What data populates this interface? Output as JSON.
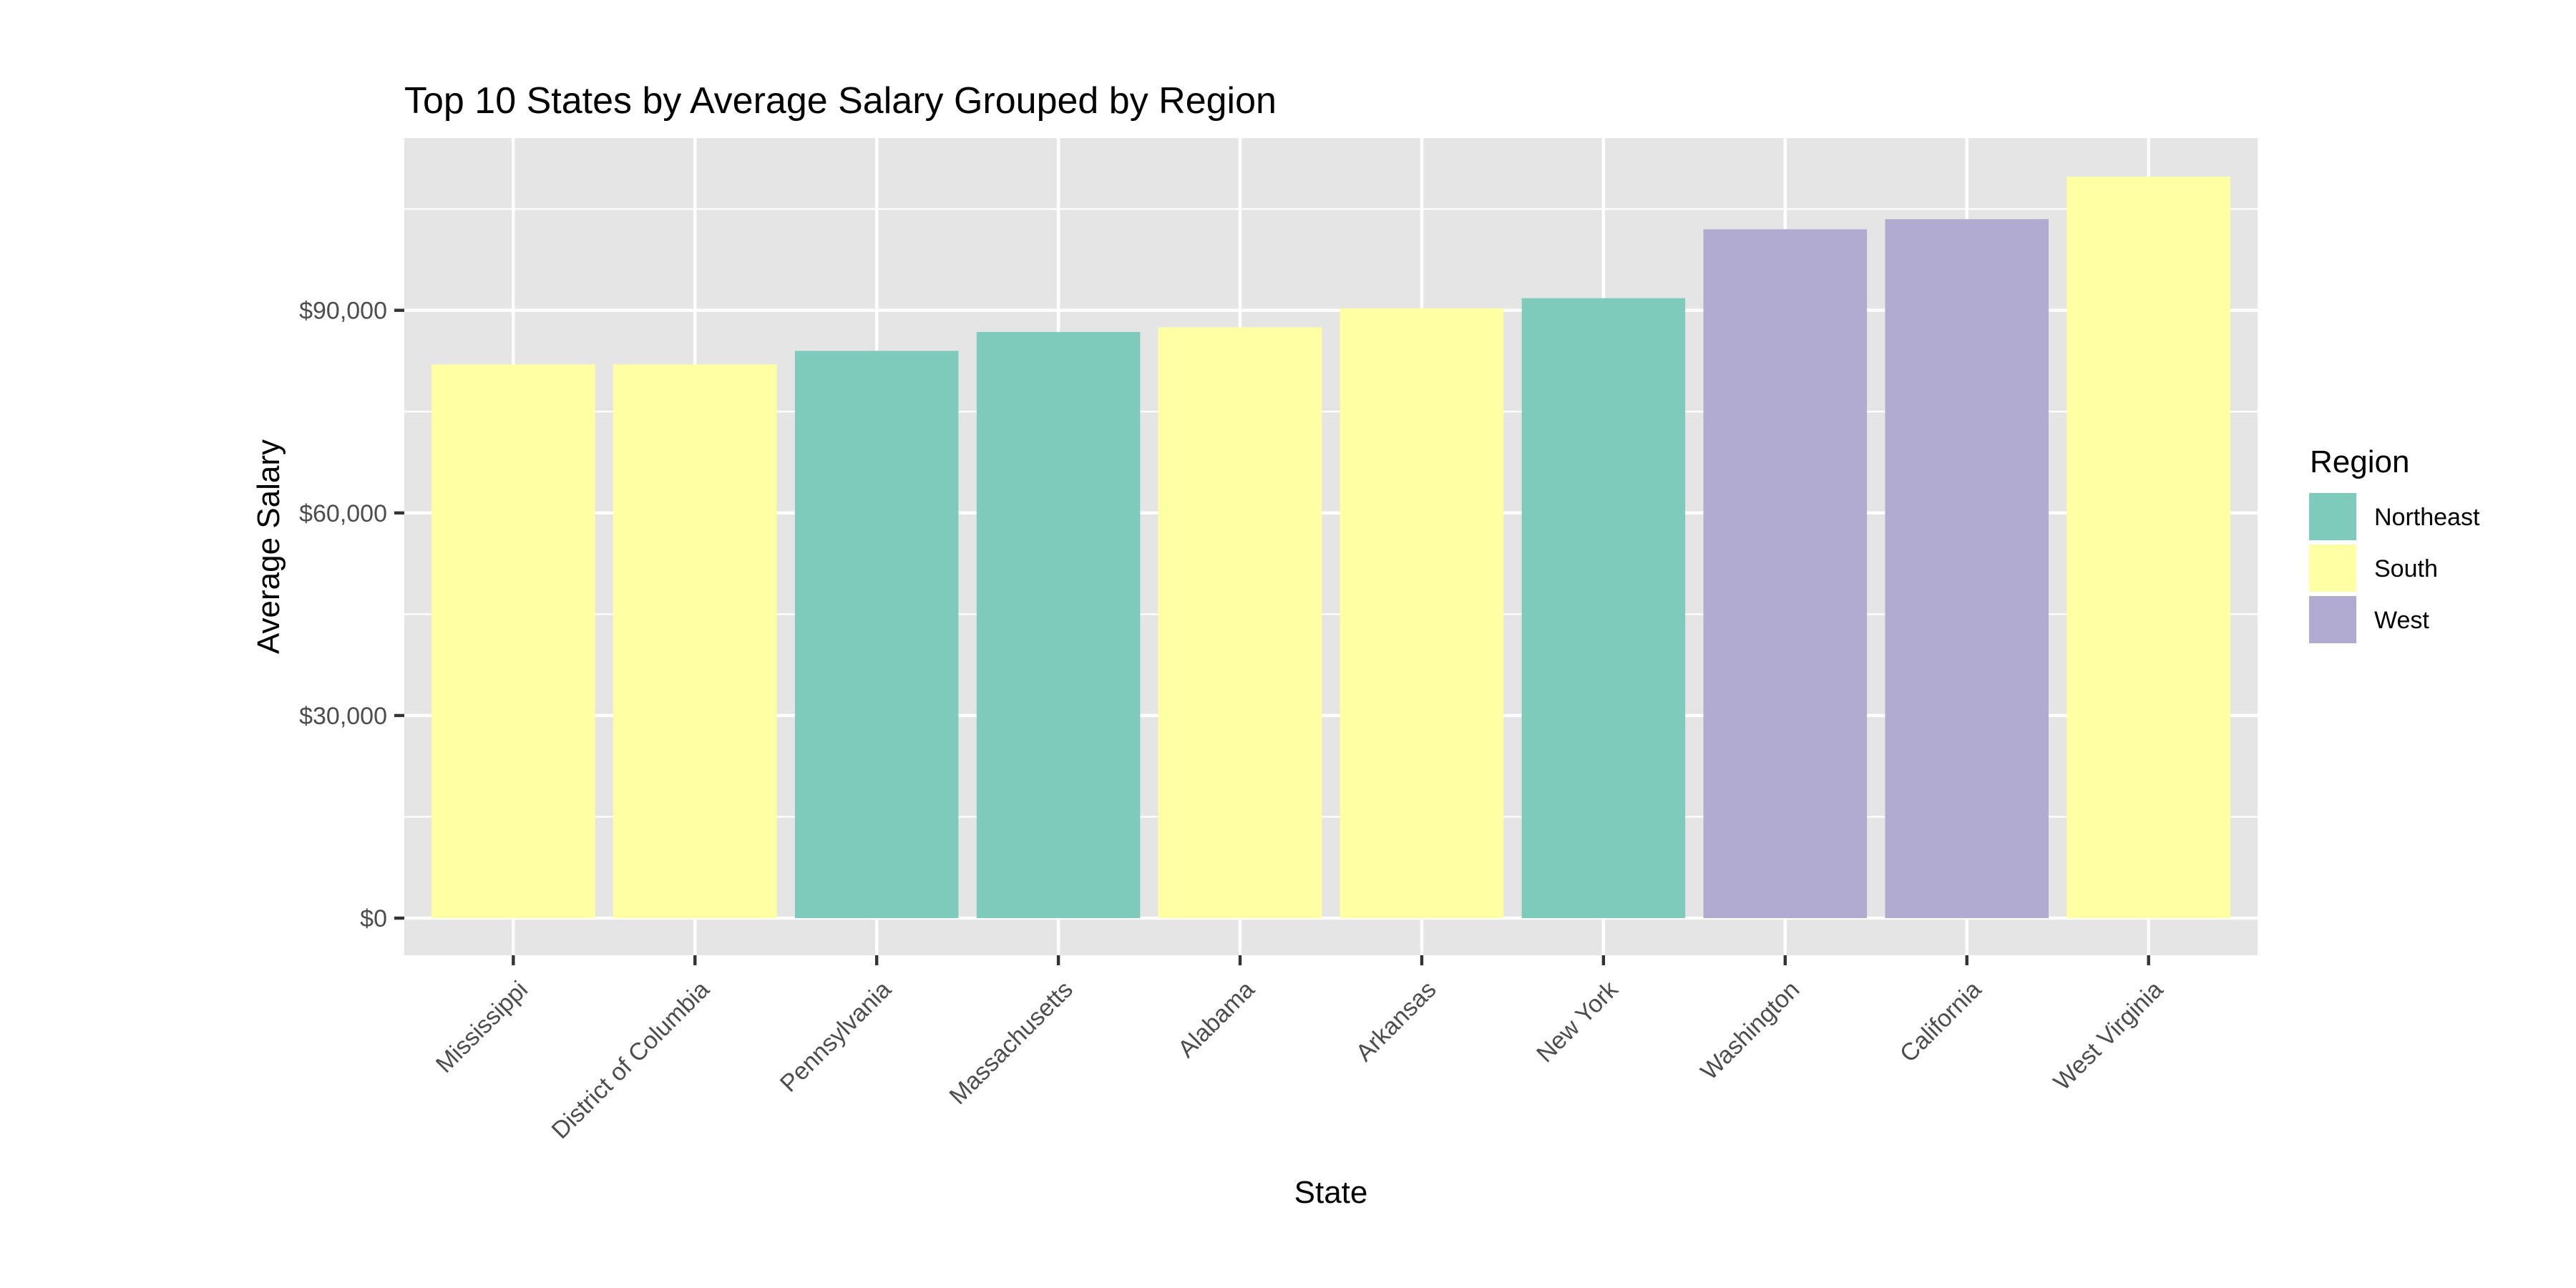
{
  "chart_data": {
    "type": "bar",
    "title": "Top 10 States by Average Salary Grouped by Region",
    "xlabel": "State",
    "ylabel": "Average Salary",
    "categories": [
      "Mississippi",
      "District of Columbia",
      "Pennsylvania",
      "Massachusetts",
      "Alabama",
      "Arkansas",
      "New York",
      "Washington",
      "California",
      "West Virginia"
    ],
    "values": [
      82000,
      82000,
      84000,
      86800,
      87500,
      90300,
      91800,
      102000,
      103500,
      109800
    ],
    "groups": [
      "South",
      "South",
      "Northeast",
      "Northeast",
      "South",
      "South",
      "Northeast",
      "West",
      "West",
      "South"
    ],
    "ylim": [
      -5500,
      115500
    ],
    "yticks": [
      0,
      30000,
      60000,
      90000
    ],
    "ytick_labels": [
      "$0",
      "$30,000",
      "$60,000",
      "$90,000"
    ],
    "grid": true,
    "legend": {
      "title": "Region",
      "position": "right",
      "entries": [
        {
          "name": "Northeast",
          "color": "#7fcbbb"
        },
        {
          "name": "South",
          "color": "#ffffa3"
        },
        {
          "name": "West",
          "color": "#b1abd1"
        }
      ]
    },
    "colors": {
      "panel_background": "#e5e5e5",
      "gridline": "#ffffff"
    }
  }
}
